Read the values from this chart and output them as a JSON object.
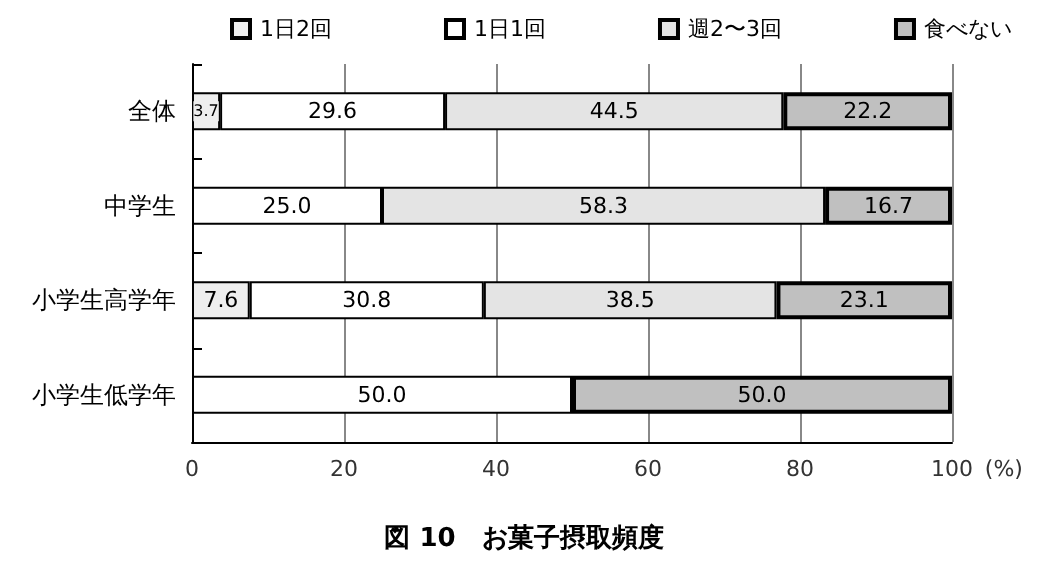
{
  "chart_data": {
    "type": "bar",
    "orientation": "horizontal",
    "stacked": true,
    "title": "図 10　お菓子摂取頻度",
    "xlabel": "(%)",
    "categories": [
      "全体",
      "中学生",
      "小学生高学年",
      "小学生低学年"
    ],
    "series": [
      {
        "name": "1日2回",
        "color": "#eeeeee",
        "values": [
          3.7,
          null,
          7.6,
          null
        ],
        "value_labels": [
          "3.7",
          null,
          "7.6",
          null
        ]
      },
      {
        "name": "1日1回",
        "color": "#ffffff",
        "values": [
          29.6,
          25.0,
          30.8,
          50.0
        ],
        "value_labels": [
          "29.6",
          "25.0",
          "30.8",
          "50.0"
        ]
      },
      {
        "name": "週2〜3回",
        "color": "#e4e4e4",
        "values": [
          44.5,
          58.3,
          38.5,
          null
        ],
        "value_labels": [
          "44.5",
          "58.3",
          "38.5",
          null
        ]
      },
      {
        "name": "食べない",
        "color": "#c0c0c0",
        "values": [
          22.2,
          16.7,
          23.1,
          50.0
        ],
        "value_labels": [
          "22.2",
          "16.7",
          "23.1",
          "50.0"
        ]
      }
    ],
    "xlim": [
      0,
      100
    ],
    "xticks": [
      0,
      20,
      40,
      60,
      80,
      100
    ],
    "grid": "x",
    "legend": "top"
  }
}
